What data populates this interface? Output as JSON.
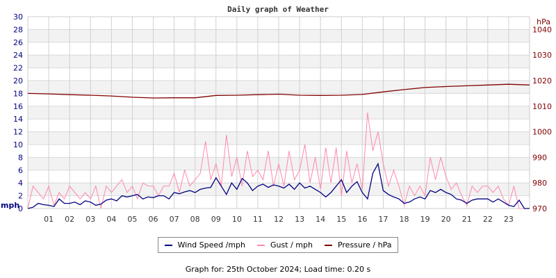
{
  "chart_data": {
    "type": "line",
    "title": "Daily graph of Weather",
    "x_tick_labels": [
      "01",
      "02",
      "03",
      "04",
      "05",
      "06",
      "07",
      "08",
      "09",
      "10",
      "11",
      "12",
      "13",
      "14",
      "15",
      "16",
      "17",
      "18",
      "19",
      "20",
      "21",
      "22",
      "23"
    ],
    "xlim_hours": [
      0,
      24
    ],
    "left_axis": {
      "label": "mph",
      "ylim": [
        0,
        30
      ],
      "ticks": [
        0,
        2,
        4,
        6,
        8,
        10,
        12,
        14,
        16,
        18,
        20,
        22,
        24,
        26,
        28,
        30
      ],
      "color": "#000080"
    },
    "right_axis": {
      "label": "hPa",
      "ylim": [
        970,
        1045
      ],
      "ticks": [
        970,
        980,
        990,
        1000,
        1010,
        1020,
        1030,
        1040
      ],
      "color": "#800000"
    },
    "grid": true,
    "legend_placement": "bottom",
    "series": [
      {
        "name": "Wind Speed /mph",
        "axis": "left",
        "color": "#000080",
        "x_step_hours": 0.25,
        "values": [
          0,
          0.2,
          0.8,
          0.6,
          0.5,
          0.3,
          1.5,
          0.8,
          0.8,
          1.0,
          0.6,
          1.2,
          1.0,
          0.5,
          0.7,
          1.3,
          1.5,
          1.2,
          2.0,
          1.8,
          2.0,
          2.2,
          1.5,
          1.8,
          1.7,
          2.0,
          2.0,
          1.5,
          2.5,
          2.3,
          2.6,
          2.8,
          2.5,
          3.0,
          3.2,
          3.3,
          4.8,
          3.5,
          2.2,
          4.0,
          3.0,
          4.7,
          4.0,
          2.8,
          3.5,
          3.8,
          3.3,
          3.7,
          3.5,
          3.2,
          3.8,
          3.0,
          4.0,
          3.2,
          3.5,
          3.0,
          2.5,
          1.8,
          2.5,
          3.5,
          4.5,
          2.5,
          3.5,
          4.2,
          2.5,
          1.5,
          5.5,
          7.0,
          2.8,
          2.2,
          1.8,
          1.5,
          0.8,
          1.0,
          1.5,
          1.8,
          1.5,
          2.8,
          2.5,
          3.0,
          2.5,
          2.2,
          1.5,
          1.3,
          0.8,
          1.3,
          1.5,
          1.5,
          1.5,
          1.0,
          1.5,
          1.0,
          0.5,
          0.3,
          1.3,
          0.0,
          0
        ]
      },
      {
        "name": "Gust / mph",
        "axis": "left",
        "color": "#ff88aa",
        "x_step_hours": 0.25,
        "values": [
          0,
          3.5,
          2.5,
          1.5,
          3.5,
          0.5,
          2.5,
          1.5,
          3.5,
          2.5,
          1.5,
          2.5,
          1.5,
          3.5,
          0,
          3.5,
          2.5,
          3.5,
          4.5,
          2.5,
          3.5,
          1.5,
          4,
          3.5,
          3.5,
          2,
          3.5,
          3.5,
          5.5,
          2.5,
          6,
          3.5,
          4.5,
          5.5,
          10.5,
          4.5,
          7,
          3.5,
          11.5,
          5,
          8,
          3.5,
          9,
          5,
          6,
          4.5,
          9,
          3.5,
          7,
          3.5,
          9,
          4.5,
          6,
          10,
          4,
          8,
          3,
          9.5,
          4,
          9.5,
          2,
          9,
          4,
          7,
          3,
          15,
          9,
          12,
          7,
          3.5,
          6,
          3.5,
          0.5,
          3.5,
          2,
          3.5,
          2,
          8,
          4.5,
          8,
          5,
          3,
          4,
          2,
          0.5,
          3.5,
          2.5,
          3.5,
          3.5,
          2.5,
          3.5,
          1.5,
          0.5,
          3.5,
          0,
          0,
          0
        ]
      },
      {
        "name": "Pressure / hPa",
        "axis": "right",
        "color": "#800000",
        "x_step_hours": 1,
        "values": [
          1015,
          1014.8,
          1014.5,
          1014.3,
          1014,
          1013.5,
          1013.2,
          1013.3,
          1013.3,
          1014.2,
          1014.3,
          1014.5,
          1014.7,
          1014.3,
          1014.2,
          1014.3,
          1014.6,
          1015.6,
          1016.5,
          1017.3,
          1017.7,
          1018,
          1018.3,
          1018.6,
          1018.3
        ]
      }
    ]
  },
  "footer": "Graph for: 25th October 2024; Load time: 0.20 s"
}
